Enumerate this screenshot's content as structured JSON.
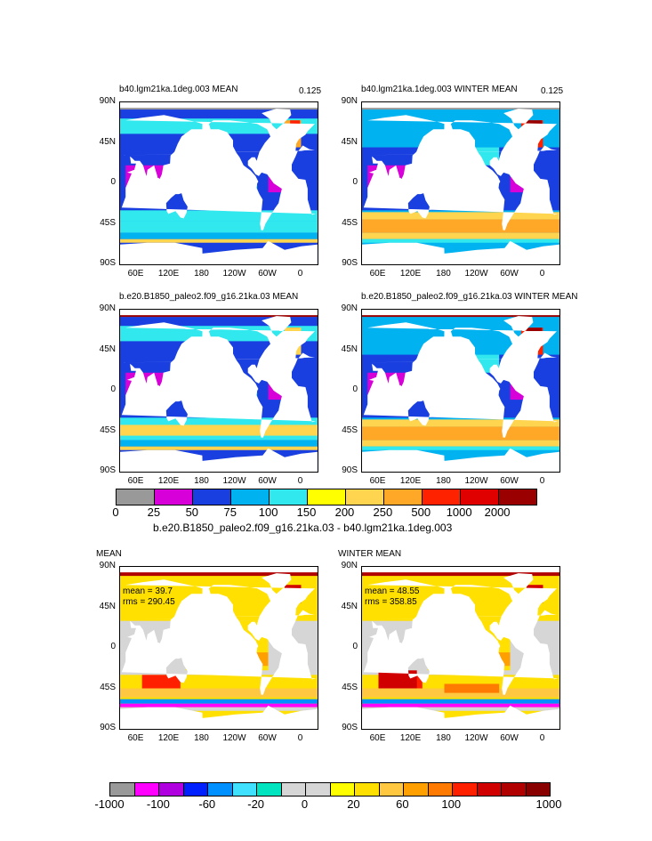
{
  "panels": [
    {
      "id": "p1",
      "title": "b40.lgm21ka.1deg.003 MEAN",
      "cint": "0.125",
      "season": "mean",
      "scheme": "abs",
      "lgm": true
    },
    {
      "id": "p2",
      "title": "b40.lgm21ka.1deg.003 WINTER MEAN",
      "cint": "0.125",
      "season": "winter",
      "scheme": "abs",
      "lgm": true
    },
    {
      "id": "p3",
      "title": "b.e20.B1850_paleo2.f09_g16.21ka.03 MEAN",
      "cint": "",
      "season": "mean",
      "scheme": "abs",
      "lgm": false
    },
    {
      "id": "p4",
      "title": "b.e20.B1850_paleo2.f09_g16.21ka.03 WINTER MEAN",
      "cint": "",
      "season": "winter",
      "scheme": "abs",
      "lgm": false
    },
    {
      "id": "p5",
      "title": "MEAN",
      "cint": "",
      "season": "mean",
      "scheme": "diff",
      "stats": {
        "mean": "mean = 39.7",
        "rms": "rms = 290.45"
      }
    },
    {
      "id": "p6",
      "title": "WINTER MEAN",
      "cint": "",
      "season": "winter",
      "scheme": "diff",
      "stats": {
        "mean": "mean = 48.55",
        "rms": "rms = 358.85"
      }
    }
  ],
  "lat_ticks": [
    "90N",
    "45N",
    "0",
    "45S",
    "90S"
  ],
  "lon_ticks": [
    "60E",
    "120E",
    "180",
    "120W",
    "60W",
    "0"
  ],
  "colorbar_top": {
    "labels": [
      "0",
      "25",
      "50",
      "75",
      "100",
      "150",
      "200",
      "250",
      "500",
      "1000",
      "2000"
    ],
    "colors": [
      "#999999",
      "#d800d8",
      "#1a3fe0",
      "#00b3f0",
      "#30e8ee",
      "#ffff00",
      "#ffd54f",
      "#ffa726",
      "#ff2200",
      "#e00000",
      "#9a0000"
    ],
    "title": "b.e20.B1850_paleo2.f09_g16.21ka.03 - b40.lgm21ka.1deg.003"
  },
  "colorbar_bottom": {
    "labels": [
      "-1000",
      "-100",
      "-60",
      "-20",
      "0",
      "20",
      "60",
      "100",
      "1000"
    ],
    "colors": [
      "#999999",
      "#ff00ff",
      "#b000e0",
      "#0020ff",
      "#0090ff",
      "#40e0ff",
      "#00e5c0",
      "#d6d6d6",
      "#d6d6d6",
      "#ffff00",
      "#ffe000",
      "#ffc840",
      "#ffa000",
      "#ff7a00",
      "#ff2000",
      "#d00000",
      "#b00000",
      "#880000"
    ]
  }
}
